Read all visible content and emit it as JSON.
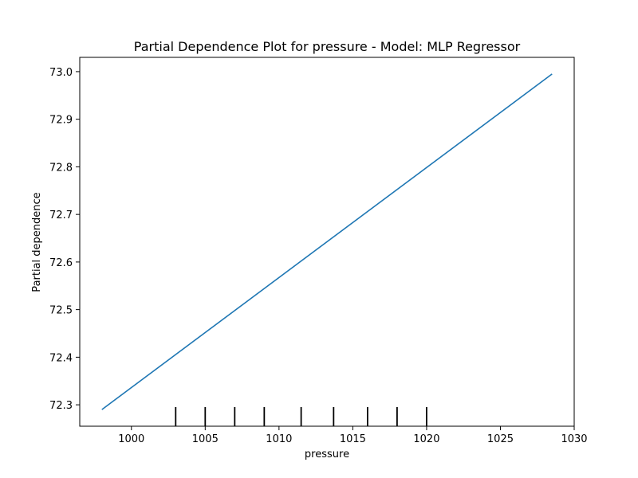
{
  "chart_data": {
    "type": "line",
    "title": "Partial Dependence Plot for pressure - Model: MLP Regressor",
    "xlabel": "pressure",
    "ylabel": "Partial dependence",
    "xlim": [
      996.5,
      1030
    ],
    "ylim": [
      72.255,
      73.03
    ],
    "x_ticks": [
      1000,
      1005,
      1010,
      1015,
      1020,
      1025,
      1030
    ],
    "y_ticks": [
      72.3,
      72.4,
      72.5,
      72.6,
      72.7,
      72.8,
      72.9,
      73.0
    ],
    "x_tick_labels": [
      "1000",
      "1005",
      "1010",
      "1015",
      "1020",
      "1025",
      "1030"
    ],
    "y_tick_labels": [
      "72.3",
      "72.4",
      "72.5",
      "72.6",
      "72.7",
      "72.8",
      "72.9",
      "73.0"
    ],
    "grid": false,
    "series": [
      {
        "color": "#1f77b4",
        "x": [
          998,
          1028.5
        ],
        "y": [
          72.29,
          72.995
        ]
      }
    ],
    "deciles": [
      1003,
      1005,
      1007,
      1009,
      1011.5,
      1013.7,
      1016,
      1018,
      1020
    ],
    "decile_color": "#000000"
  }
}
